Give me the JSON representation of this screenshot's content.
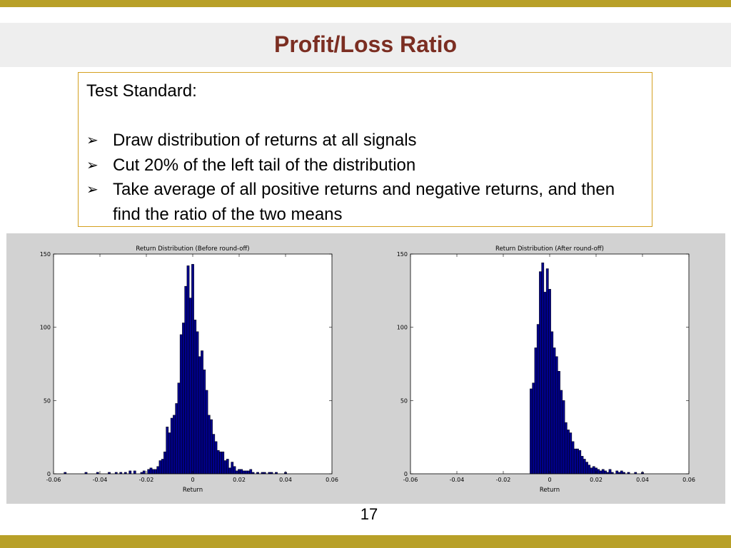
{
  "slide": {
    "title": "Profit/Loss Ratio",
    "page_number": "17",
    "accent_color": "#b8a028",
    "title_color": "#7b2e22"
  },
  "textbox": {
    "heading": "Test Standard:",
    "bullets": [
      "Draw distribution of returns at all signals",
      "Cut 20% of the left tail of the distribution",
      "Take average of all positive returns and negative returns, and then find the ratio of the two means"
    ],
    "bullet_glyph": "➢"
  },
  "chart_data": [
    {
      "type": "bar",
      "title": "Return Distribution (Before round-off)",
      "xlabel": "Return",
      "ylabel": "",
      "xlim": [
        -0.06,
        0.06
      ],
      "ylim": [
        0,
        150
      ],
      "xticks": [
        "-0.06",
        "-0.04",
        "-0.02",
        "0",
        "0.02",
        "0.04",
        "0.06"
      ],
      "yticks": [
        "0",
        "50",
        "100",
        "150"
      ],
      "bin_width": 0.001,
      "bar_color": "#00008b",
      "grid": false,
      "bins": [
        [
          -0.055,
          1
        ],
        [
          -0.046,
          1
        ],
        [
          -0.041,
          1
        ],
        [
          -0.036,
          1
        ],
        [
          -0.033,
          1
        ],
        [
          -0.031,
          1
        ],
        [
          -0.029,
          1
        ],
        [
          -0.027,
          2
        ],
        [
          -0.025,
          2
        ],
        [
          -0.022,
          1
        ],
        [
          -0.021,
          2
        ],
        [
          -0.019,
          3
        ],
        [
          -0.018,
          4
        ],
        [
          -0.017,
          3
        ],
        [
          -0.016,
          3
        ],
        [
          -0.015,
          5
        ],
        [
          -0.014,
          9
        ],
        [
          -0.013,
          10
        ],
        [
          -0.012,
          15
        ],
        [
          -0.011,
          32
        ],
        [
          -0.01,
          28
        ],
        [
          -0.009,
          38
        ],
        [
          -0.008,
          40
        ],
        [
          -0.007,
          48
        ],
        [
          -0.006,
          62
        ],
        [
          -0.005,
          95
        ],
        [
          -0.004,
          103
        ],
        [
          -0.003,
          128
        ],
        [
          -0.002,
          142
        ],
        [
          -0.001,
          120
        ],
        [
          0.0,
          143
        ],
        [
          0.001,
          105
        ],
        [
          0.002,
          97
        ],
        [
          0.003,
          80
        ],
        [
          0.004,
          84
        ],
        [
          0.005,
          71
        ],
        [
          0.006,
          57
        ],
        [
          0.007,
          40
        ],
        [
          0.008,
          37
        ],
        [
          0.009,
          27
        ],
        [
          0.01,
          22
        ],
        [
          0.011,
          16
        ],
        [
          0.012,
          15
        ],
        [
          0.013,
          15
        ],
        [
          0.014,
          9
        ],
        [
          0.015,
          10
        ],
        [
          0.016,
          4
        ],
        [
          0.017,
          8
        ],
        [
          0.018,
          5
        ],
        [
          0.019,
          2
        ],
        [
          0.02,
          3
        ],
        [
          0.021,
          3
        ],
        [
          0.022,
          2
        ],
        [
          0.023,
          2
        ],
        [
          0.024,
          2
        ],
        [
          0.025,
          3
        ],
        [
          0.026,
          1
        ],
        [
          0.028,
          1
        ],
        [
          0.03,
          1
        ],
        [
          0.031,
          1
        ],
        [
          0.033,
          1
        ],
        [
          0.034,
          1
        ],
        [
          0.036,
          1
        ],
        [
          0.04,
          1
        ]
      ]
    },
    {
      "type": "bar",
      "title": "Return Distribution (After round-off)",
      "xlabel": "Return",
      "ylabel": "",
      "xlim": [
        -0.06,
        0.06
      ],
      "ylim": [
        0,
        150
      ],
      "xticks": [
        "-0.06",
        "-0.04",
        "-0.02",
        "0",
        "0.02",
        "0.04",
        "0.06"
      ],
      "yticks": [
        "0",
        "50",
        "100",
        "150"
      ],
      "bin_width": 0.001,
      "bar_color": "#00008b",
      "grid": false,
      "bins": [
        [
          -0.008,
          58
        ],
        [
          -0.007,
          62
        ],
        [
          -0.006,
          86
        ],
        [
          -0.005,
          102
        ],
        [
          -0.004,
          138
        ],
        [
          -0.003,
          144
        ],
        [
          -0.002,
          124
        ],
        [
          -0.001,
          140
        ],
        [
          0.0,
          126
        ],
        [
          0.001,
          97
        ],
        [
          0.002,
          86
        ],
        [
          0.003,
          80
        ],
        [
          0.004,
          70
        ],
        [
          0.005,
          57
        ],
        [
          0.006,
          50
        ],
        [
          0.007,
          35
        ],
        [
          0.008,
          30
        ],
        [
          0.009,
          28
        ],
        [
          0.01,
          22
        ],
        [
          0.011,
          17
        ],
        [
          0.012,
          17
        ],
        [
          0.013,
          16
        ],
        [
          0.014,
          12
        ],
        [
          0.015,
          10
        ],
        [
          0.016,
          8
        ],
        [
          0.017,
          6
        ],
        [
          0.018,
          4
        ],
        [
          0.019,
          5
        ],
        [
          0.02,
          4
        ],
        [
          0.021,
          3
        ],
        [
          0.022,
          2
        ],
        [
          0.023,
          3
        ],
        [
          0.024,
          2
        ],
        [
          0.025,
          1
        ],
        [
          0.026,
          3
        ],
        [
          0.027,
          1
        ],
        [
          0.029,
          2
        ],
        [
          0.03,
          1
        ],
        [
          0.031,
          2
        ],
        [
          0.032,
          1
        ],
        [
          0.034,
          1
        ],
        [
          0.037,
          1
        ],
        [
          0.04,
          1
        ]
      ]
    }
  ]
}
